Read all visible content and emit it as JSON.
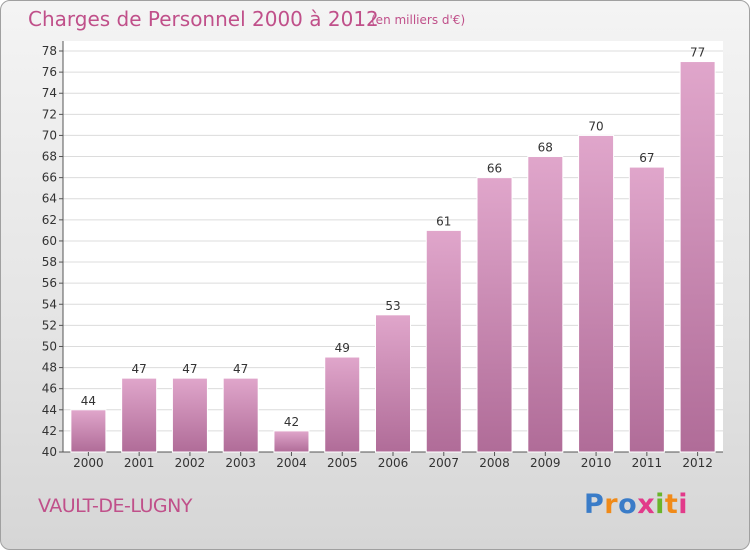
{
  "header": {
    "title": "Charges de Personnel 2000 à 2012",
    "unit": "(en milliers d'€)"
  },
  "footer": {
    "commune": "VAULT-DE-LUGNY",
    "logo": "Proxiti"
  },
  "colors": {
    "accent": "#c0508a",
    "bar_top": "#e0a6cb",
    "bar_bottom": "#b06c98",
    "plot_bg": "#ffffff"
  },
  "chart_data": {
    "type": "bar",
    "title": "Charges de Personnel 2000 à 2012",
    "subtitle": "(en milliers d'€)",
    "xlabel": "",
    "ylabel": "",
    "categories": [
      "2000",
      "2001",
      "2002",
      "2003",
      "2004",
      "2005",
      "2006",
      "2007",
      "2008",
      "2009",
      "2010",
      "2011",
      "2012"
    ],
    "values": [
      44,
      47,
      47,
      47,
      42,
      49,
      53,
      61,
      66,
      68,
      70,
      67,
      77
    ],
    "data_labels": [
      "44",
      "47",
      "47",
      "47",
      "42",
      "49",
      "53",
      "61",
      "66",
      "68",
      "70",
      "67",
      "77"
    ],
    "ylim": [
      40,
      78
    ],
    "yticks": [
      40,
      42,
      44,
      46,
      48,
      50,
      52,
      54,
      56,
      58,
      60,
      62,
      64,
      66,
      68,
      70,
      72,
      74,
      76,
      78
    ],
    "grid": true,
    "legend": "none"
  }
}
